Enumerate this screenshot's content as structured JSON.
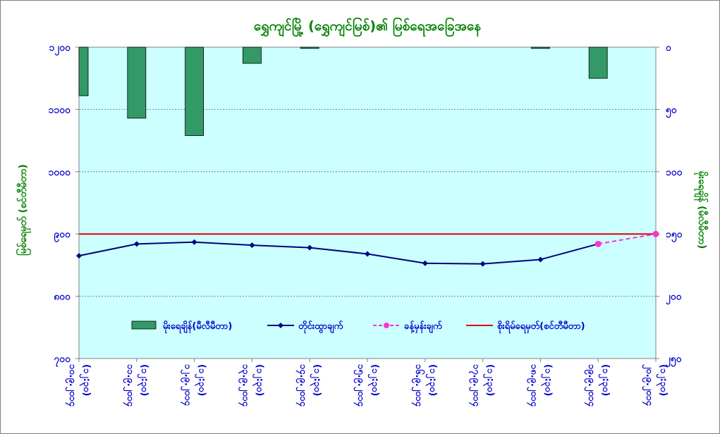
{
  "chart_data": {
    "type": "bar+line",
    "title": "ရွှေကျင်မြို့ (ရွှေကျင်မြစ်)၏ မြစ်ရေအခြေအနေ",
    "ylabel_left": "မြစ်ရေမှတ် (စင်တီမီတာ)",
    "ylabel_right": "မိုးရေချိန် (မီလီမီတာ)",
    "left_axis": {
      "min": 700,
      "max": 1200,
      "step": 100,
      "tick_labels": [
        "၇၀၀",
        "၈၀၀",
        "၉၀၀",
        "၁၀၀၀",
        "၁၁၀၀",
        "၁၂၀၀"
      ]
    },
    "right_axis": {
      "min": 0,
      "max": 250,
      "step": 50,
      "inverted": true,
      "tick_labels": [
        "၀",
        "၅၀",
        "၁၀၀",
        "၁၅၀",
        "၂၀၀",
        "၂၅၀"
      ]
    },
    "categories": [
      {
        "date": "၁၀.၉.၂၀၁၄",
        "time": "(၁၂:၃၀)"
      },
      {
        "date": "၁၁.၉.၂၀၁၄",
        "time": "(၁၂:၃၀)"
      },
      {
        "date": "၁၂.၉.၂၀၁၄",
        "time": "(၁၂:၃၀)"
      },
      {
        "date": "၁၃.၉.၂၀၁၄",
        "time": "(၁၂:၃၀)"
      },
      {
        "date": "၁၄.၉.၂၀၁၄",
        "time": "(၁၂:၃၀)"
      },
      {
        "date": "၁၅.၉.၂၀၁၄",
        "time": "(၁၂:၃၀)"
      },
      {
        "date": "၁၆.၉.၂၀၁၄",
        "time": "(၁၂:၃၀)"
      },
      {
        "date": "၁၇.၉.၂၀၁၄",
        "time": "(၁၂:၃၀)"
      },
      {
        "date": "၁၈.၉.၂၀၁၄",
        "time": "(၁၂:၃၀)"
      },
      {
        "date": "၁၉.၉.၂၀၁၄",
        "time": "(၁၂:၃၀)"
      },
      {
        "date": "၂၀.၉.၂၀၁၄",
        "time": "(၁၂:၃၀)"
      }
    ],
    "series": [
      {
        "name": "မိုးရေချိန်(မီလီမီတာ)",
        "type": "bar",
        "axis": "right",
        "color": "#339966",
        "values": [
          39,
          57,
          71,
          13,
          1,
          null,
          null,
          null,
          1,
          25,
          null
        ]
      },
      {
        "name": "တိုင်းထွာချက်",
        "type": "line",
        "axis": "left",
        "color": "#000080",
        "values": [
          865,
          884,
          887,
          882,
          878,
          868,
          853,
          852,
          859,
          884,
          null
        ]
      },
      {
        "name": "ခန့်မှန်းချက်",
        "type": "line",
        "axis": "left",
        "color": "#ff33cc",
        "dashed": true,
        "values": [
          null,
          null,
          null,
          null,
          null,
          null,
          null,
          null,
          null,
          884,
          900
        ]
      },
      {
        "name": "စိုးရိမ်ရေမှတ်(စင်တီမီတာ)",
        "type": "hline",
        "axis": "left",
        "color": "#e00000",
        "value": 900
      }
    ],
    "grid": true,
    "legend_position": "lower-center"
  }
}
